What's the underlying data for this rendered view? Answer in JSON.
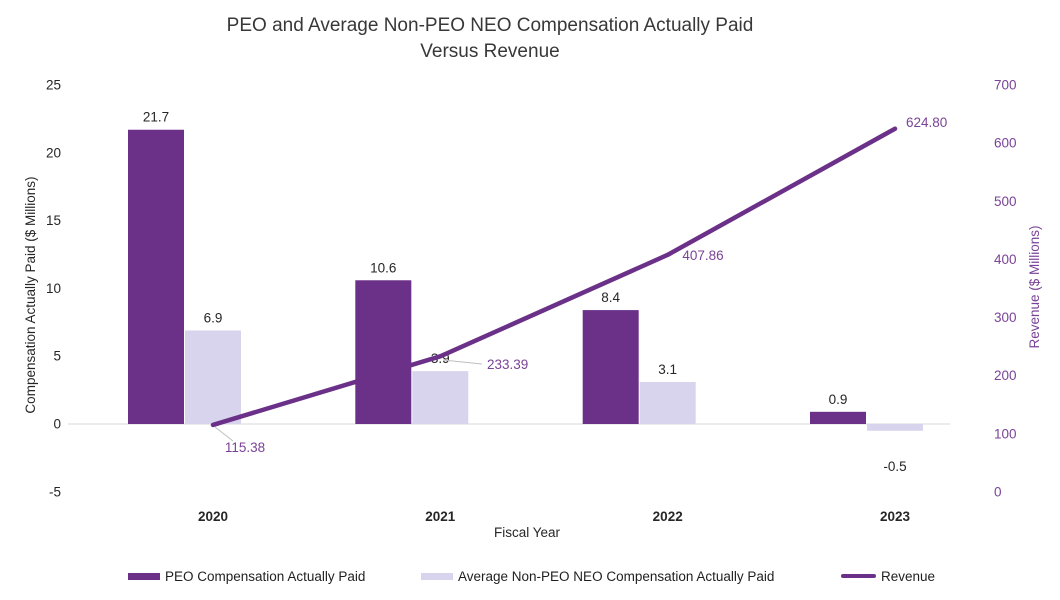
{
  "chart_data": {
    "type": "bar",
    "subtype": "combo-bar-line-dual-axis",
    "title": "PEO and Average Non-PEO NEO Compensation Actually Paid Versus Revenue",
    "title_lines": [
      "PEO and Average Non-PEO NEO Compensation Actually Paid",
      "Versus Revenue"
    ],
    "categories": [
      "2020",
      "2021",
      "2022",
      "2023"
    ],
    "xlabel": "Fiscal Year",
    "series": [
      {
        "name": "PEO Compensation Actually Paid",
        "type": "bar",
        "axis": "left",
        "color": "#6B3189",
        "values": [
          21.7,
          10.6,
          8.4,
          0.9
        ],
        "labels": [
          "21.7",
          "10.6",
          "8.4",
          "0.9"
        ]
      },
      {
        "name": "Average Non-PEO NEO Compensation Actually Paid",
        "type": "bar",
        "axis": "left",
        "color": "#D9D4EE",
        "values": [
          6.9,
          3.9,
          3.1,
          -0.5
        ],
        "labels": [
          "6.9",
          "3.9",
          "3.1",
          "-0.5"
        ]
      },
      {
        "name": "Revenue",
        "type": "line",
        "axis": "right",
        "color": "#6B3189",
        "values": [
          115.38,
          233.39,
          407.86,
          624.8
        ],
        "labels": [
          "115.38",
          "233.39",
          "407.86",
          "624.80"
        ]
      }
    ],
    "left_axis": {
      "label": "Compensation Actually Paid ($ Millions)",
      "min": -5,
      "max": 25,
      "ticks": [
        25,
        20,
        15,
        10,
        5,
        0,
        -5
      ]
    },
    "right_axis": {
      "label": "Revenue ($ Millions)",
      "min": 0,
      "max": 700,
      "ticks": [
        700,
        600,
        500,
        400,
        300,
        200,
        100,
        0
      ]
    },
    "legend_position": "bottom",
    "grid": "zero-baseline-only"
  },
  "colors": {
    "bar_dark_purple": "#6B3189",
    "bar_light_lavender": "#D9D4EE",
    "line_purple": "#6B3189",
    "purple_text": "#7A4397",
    "gridline_gray": "#D9D9D9",
    "leader_gray": "#BFBFBF",
    "text_black": "#262626",
    "title_gray": "#383838"
  }
}
